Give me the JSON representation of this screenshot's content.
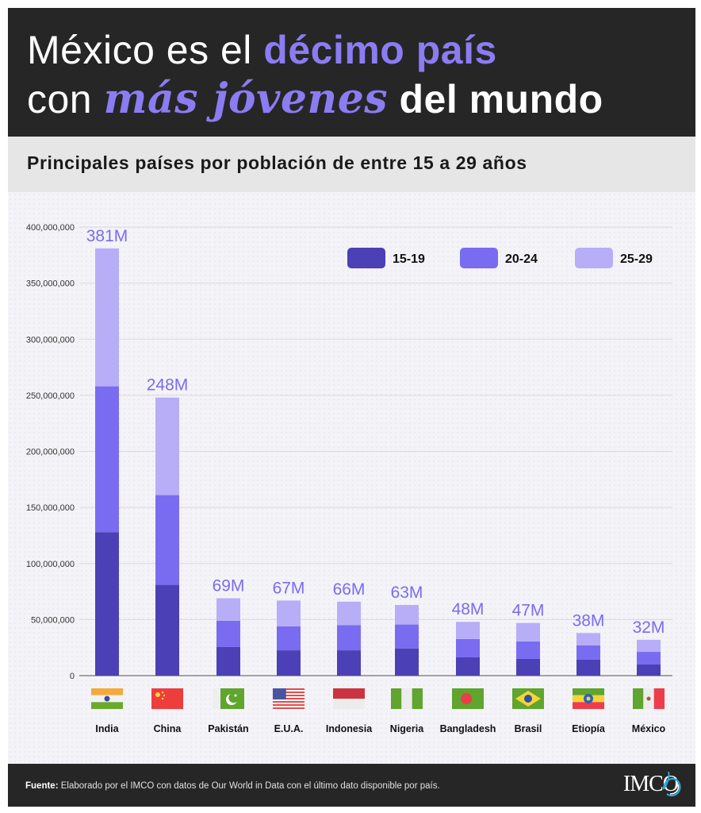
{
  "header": {
    "title_line1_plain": "México es el ",
    "title_line1_accent": "décimo país",
    "title_line2_plain": "con ",
    "title_line2_accent": "más jóvenes",
    "title_line2_bold": " del mundo"
  },
  "subtitle": "Principales países por población de entre 15 a 29 años",
  "footer": {
    "source_label": "Fuente:",
    "source_text": " Elaborado por el IMCO con datos de Our World in Data con el último dato disponible por país.",
    "logo_text": "IMCO"
  },
  "colors": {
    "s15_19": "#4b40b5",
    "s20_24": "#7a6cf0",
    "s25_29": "#b7aef7",
    "total_label": "#7a6cf0",
    "grid": "#d9d7df",
    "axis": "#888888"
  },
  "chart_data": {
    "type": "bar",
    "stacked": true,
    "title": "Principales países por población de entre 15 a 29 años",
    "xlabel": "",
    "ylabel": "",
    "ylim": [
      0,
      400000000
    ],
    "yticks": [
      0,
      50000000,
      100000000,
      150000000,
      200000000,
      250000000,
      300000000,
      350000000,
      400000000
    ],
    "ytick_labels": [
      "0",
      "50,000,000",
      "100,000,000",
      "150,000,000",
      "200,000,000",
      "250,000,000",
      "300,000,000",
      "350,000,000",
      "400,000,000"
    ],
    "grid": true,
    "legend_position": "top-right",
    "categories": [
      "India",
      "China",
      "Pakistán",
      "E.U.A.",
      "Indonesia",
      "Nigeria",
      "Bangladesh",
      "Brasil",
      "Etiopía",
      "México"
    ],
    "flags": [
      "india-flag",
      "china-flag",
      "pakistan-flag",
      "usa-flag",
      "indonesia-flag",
      "nigeria-flag",
      "bangladesh-flag",
      "brazil-flag",
      "ethiopia-flag",
      "mexico-flag"
    ],
    "series": [
      {
        "name": "15-19",
        "values": [
          128000000,
          81000000,
          25500000,
          22600000,
          22600000,
          24300000,
          16300000,
          14900000,
          14200000,
          9900000
        ]
      },
      {
        "name": "20-24",
        "values": [
          130000000,
          80000000,
          23500000,
          21400000,
          22400000,
          21300000,
          16300000,
          15600000,
          12700000,
          11300000
        ]
      },
      {
        "name": "25-29",
        "values": [
          123000000,
          87000000,
          20000000,
          23000000,
          21000000,
          17400000,
          15400000,
          16500000,
          11100000,
          10800000
        ]
      }
    ],
    "totals": [
      381000000,
      248000000,
      69000000,
      67000000,
      66000000,
      63000000,
      48000000,
      47000000,
      38000000,
      32000000
    ],
    "total_labels": [
      "381M",
      "248M",
      "69M",
      "67M",
      "66M",
      "63M",
      "48M",
      "47M",
      "38M",
      "32M"
    ]
  }
}
